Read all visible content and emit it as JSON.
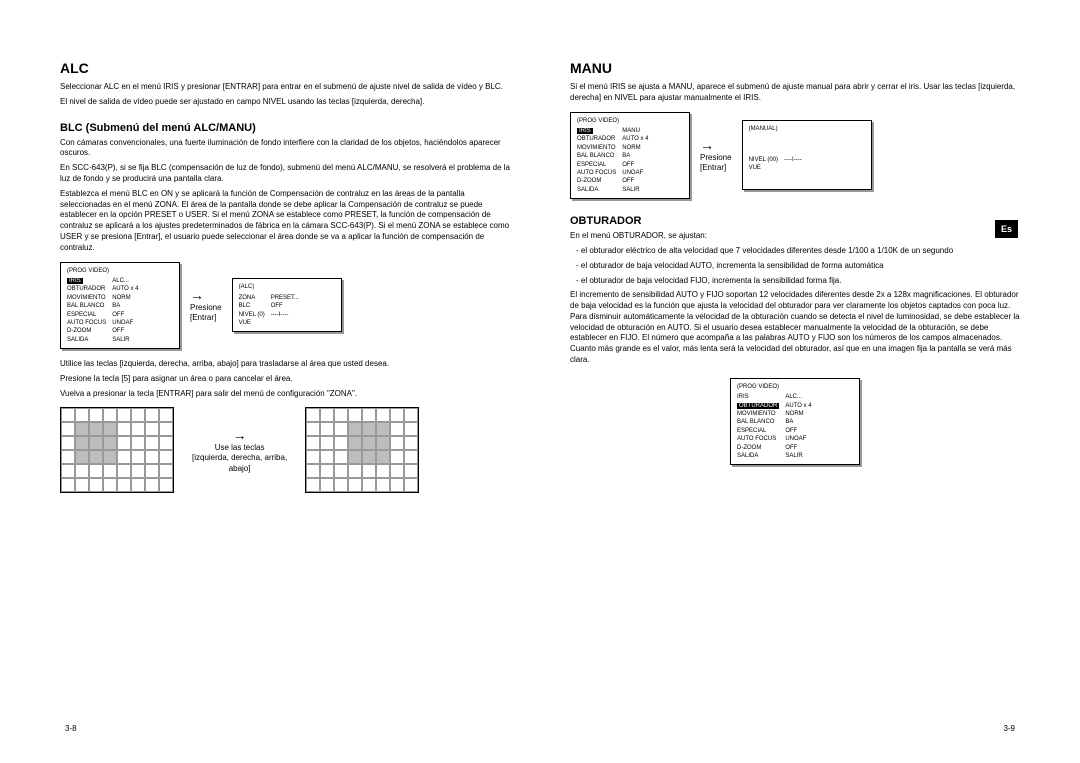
{
  "left": {
    "h1": "ALC",
    "p1": "Seleccionar ALC en el menú IRIS y presionar [ENTRAR] para entrar en el submenú de ajuste nivel de salida de vídeo y BLC.",
    "p2": "El nivel de salida de vídeo puede ser ajustado en campo NIVEL usando las teclas [izquierda, derecha].",
    "h2": "BLC (Submenú del menú ALC/MANU)",
    "p3": "Con cámaras convencionales, una fuerte iluminación de fondo interfiere con la claridad de los objetos, haciéndolos aparecer oscuros.",
    "p4": "En SCC-643(P), si se fija BLC (compensación de luz de fondo), submenú del menú ALC/MANU, se resolverá el problema de la luz de fondo y se producirá una pantalla clara.",
    "p5": "Establezca el menú BLC en ON y se aplicará la función de Compensación de contraluz en las áreas de la pantalla seleccionadas en el menú ZONA. El área de la pantalla donde se debe aplicar la Compensación de contraluz se puede establecer en la opción PRESET o USER. Si el menú ZONA se establece como PRESET, la función de compensación de contraluz se aplicará a los ajustes predeterminados de fábrica en la cámara SCC-643(P). Si el menú ZONA se establece como USER y se presiona [Entrar], el usuario puede seleccionar el área donde se va a aplicar la función de compensación de contraluz.",
    "press1": "Presione",
    "press2": "[Entrar]",
    "menu1_title": "(PROG VIDEO)",
    "menu1": [
      [
        "IRIS",
        "ALC..."
      ],
      [
        "OBTURADOR",
        "AUTO x 4"
      ],
      [
        "MOVIMIENTO",
        "NORM"
      ],
      [
        "BAL BLANCO",
        "BA"
      ],
      [
        "ESPECIAL",
        "OFF"
      ],
      [
        "AUTO FOCUS",
        "UNOAF"
      ],
      [
        "D-ZOOM",
        "OFF"
      ],
      [
        "SALIDA",
        "SALIR"
      ]
    ],
    "menu2_title": "(ALC)",
    "menu2": [
      [
        "ZONA",
        "PRESET..."
      ],
      [
        "BLC",
        "OFF"
      ],
      [
        "NIVEL (0)",
        "----I----"
      ],
      [
        "VUE",
        ""
      ]
    ],
    "p6": "Utilice las teclas [izquierda, derecha, arriba, abajo] para trasladarse al área que usted desea.",
    "p7": "Presione la tecla [5] para asignar un área o para cancelar el área.",
    "p8": "Vuelva a presionar la tecla [ENTRAR] para salir del menú de configuración \"ZONA\".",
    "grids_label1": "Use las teclas",
    "grids_label2": "[izquierda, derecha, arriba,",
    "grids_label3": "abajo]",
    "pagenum": "3-8"
  },
  "right": {
    "h1": "MANU",
    "p1": "Si el menú IRIS se ajusta a MANU, aparece el submenú de ajuste manual para abrir y cerrar el iris. Usar las teclas [izquierda, derecha] en NIVEL para ajustar manualmente el IRIS.",
    "menu1_title": "(PROG VIDEO)",
    "menu1_hl": "IRIS",
    "menu1_hl_val": "MANU",
    "menu1": [
      [
        "OBTURADOR",
        "AUTO x 4"
      ],
      [
        "MOVIMIENTO",
        "NORM"
      ],
      [
        "BAL BLANCO",
        "BA"
      ],
      [
        "ESPECIAL",
        "OFF"
      ],
      [
        "AUTO FOCUS",
        "UNOAF"
      ],
      [
        "D-ZOOM",
        "OFF"
      ],
      [
        "SALIDA",
        "SALIR"
      ]
    ],
    "press1": "Presione",
    "press2": "[Entrar]",
    "menu2_title": "(MANUAL)",
    "menu2": [
      [
        "NIVEL (00)",
        "----I----"
      ],
      [
        "VUE",
        ""
      ]
    ],
    "h2": "OBTURADOR",
    "p2": "En el menú OBTURADOR, se ajustan:",
    "li1": "- el obturador eléctrico de alta velocidad que 7 velocidades diferentes desde 1/100 a 1/10K de un segundo",
    "li2": "- el obturador de baja velocidad AUTO, incrementa la sensibilidad de forma automática",
    "li3": "- el obturador de baja velocidad FIJO, incrementa la sensibilidad forma fija.",
    "p3": "El incremento de sensibilidad AUTO y FIJO soportan 12 velocidades diferentes desde 2x a 128x magnificaciones. El obturador de baja velocidad es la función que ajusta la velocidad del obturador para ver claramente los objetos captados con poca luz. Para disminuir automáticamente la velocidad de la obturación cuando se detecta el nivel de luminosidad, se debe establecer la velocidad de obturación en AUTO. Si el usuario desea establecer manualmente la velocidad de la obturación, se debe establecer en FIJO. El número que acompaña a las palabras AUTO y FIJO son los números de los campos almacenados. Cuanto más grande es el valor, más lenta será la velocidad del obturador, así que en una imagen fija la pantalla se verá más clara.",
    "menu3_title": "(PROG VIDEO)",
    "menu3_hl": "OBTURADOR",
    "menu3_hl_val": "AUTO x 4",
    "menu3_before": [
      [
        "IRIS",
        "ALC..."
      ]
    ],
    "menu3_after": [
      [
        "MOVIMIENTO",
        "NORM"
      ],
      [
        "BAL BLANCO",
        "BA"
      ],
      [
        "ESPECIAL",
        "OFF"
      ],
      [
        "AUTO FOCUS",
        "UNOAF"
      ],
      [
        "D-ZOOM",
        "OFF"
      ],
      [
        "SALIDA",
        "SALIR"
      ]
    ],
    "pagenum": "3-9",
    "langtab": "Es"
  },
  "grids": {
    "rows": 6,
    "cols": 8,
    "grid1_fill": [
      [
        1,
        1
      ],
      [
        1,
        2
      ],
      [
        1,
        3
      ],
      [
        2,
        1
      ],
      [
        2,
        2
      ],
      [
        2,
        3
      ],
      [
        3,
        1
      ],
      [
        3,
        2
      ],
      [
        3,
        3
      ]
    ],
    "grid2_fill": [
      [
        1,
        3
      ],
      [
        1,
        4
      ],
      [
        1,
        5
      ],
      [
        2,
        3
      ],
      [
        2,
        4
      ],
      [
        2,
        5
      ],
      [
        3,
        3
      ],
      [
        3,
        4
      ],
      [
        3,
        5
      ]
    ]
  }
}
